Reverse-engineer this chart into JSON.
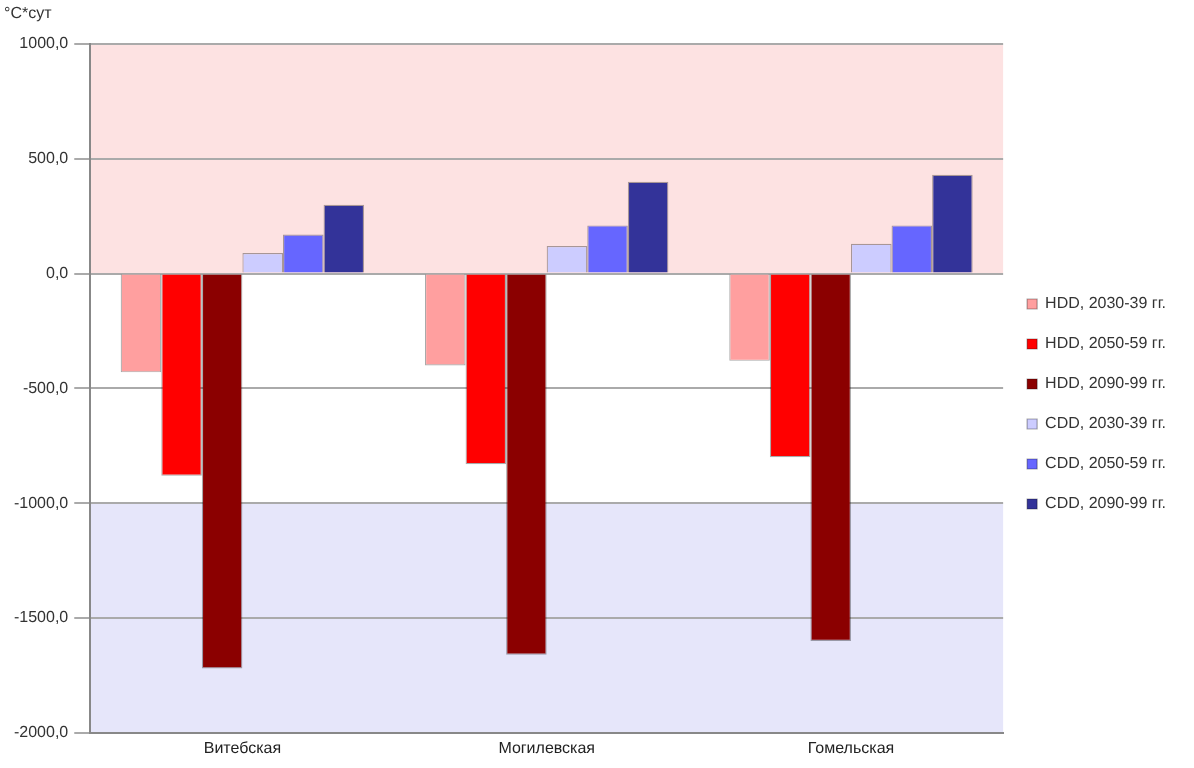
{
  "chart_data": {
    "type": "bar",
    "ylabel": "°C*сут",
    "categories": [
      "Витебская",
      "Могилевская",
      "Гомельская"
    ],
    "series": [
      {
        "name": "HDD, 2030-39 гг.",
        "color": "#ff9f9f",
        "values": [
          -430,
          -400,
          -380
        ]
      },
      {
        "name": "HDD, 2050-59 гг.",
        "color": "#ff0000",
        "values": [
          -880,
          -830,
          -800
        ]
      },
      {
        "name": "HDD, 2090-99 гг.",
        "color": "#8b0000",
        "values": [
          -1720,
          -1660,
          -1600
        ]
      },
      {
        "name": "CDD, 2030-39 гг.",
        "color": "#ccccff",
        "values": [
          90,
          120,
          130
        ]
      },
      {
        "name": "CDD, 2050-59 гг.",
        "color": "#6666ff",
        "values": [
          170,
          210,
          210
        ]
      },
      {
        "name": "CDD, 2090-99 гг.",
        "color": "#333399",
        "values": [
          300,
          400,
          430
        ]
      }
    ],
    "ylim": [
      -2000,
      1000
    ],
    "yticks": [
      {
        "value": -2000,
        "label": "-2000,0"
      },
      {
        "value": -1500,
        "label": "-1500,0"
      },
      {
        "value": -1000,
        "label": "-1000,0"
      },
      {
        "value": -500,
        "label": "-500,0"
      },
      {
        "value": 0,
        "label": "0,0"
      },
      {
        "value": 500,
        "label": "500,0"
      },
      {
        "value": 1000,
        "label": "1000,0"
      }
    ],
    "bands": [
      {
        "axis": "y",
        "from": 0,
        "to": 1000,
        "color": "#fde2e2"
      },
      {
        "axis": "y",
        "from": -2000,
        "to": -1000,
        "color": "#e6e6fa"
      }
    ],
    "grid": "y",
    "legend": "right"
  }
}
